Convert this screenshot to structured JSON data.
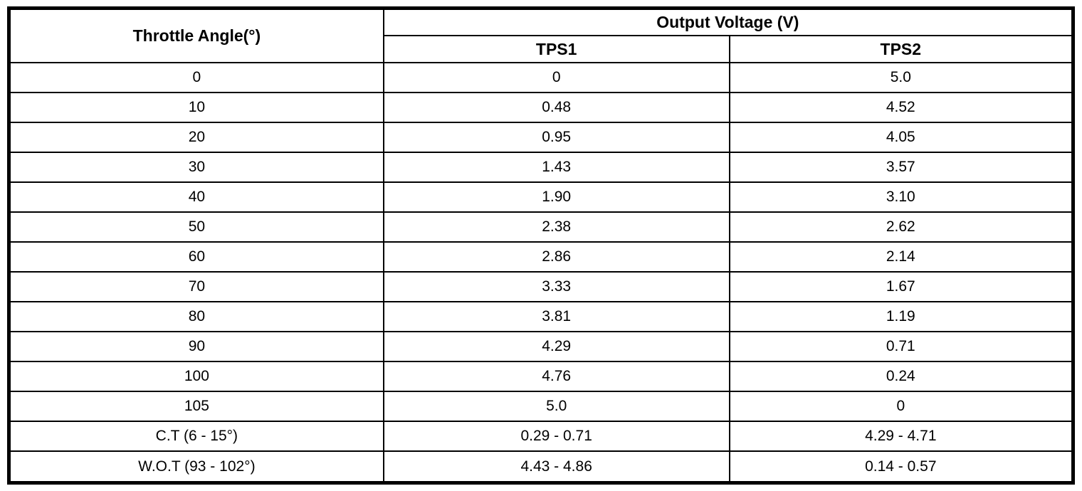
{
  "table": {
    "header": {
      "angle_col": "Throttle Angle(°)",
      "voltage_group": "Output Voltage (V)",
      "sub_columns": [
        "TPS1",
        "TPS2"
      ]
    },
    "rows": [
      {
        "angle": "0",
        "tps1": "0",
        "tps2": "5.0"
      },
      {
        "angle": "10",
        "tps1": "0.48",
        "tps2": "4.52"
      },
      {
        "angle": "20",
        "tps1": "0.95",
        "tps2": "4.05"
      },
      {
        "angle": "30",
        "tps1": "1.43",
        "tps2": "3.57"
      },
      {
        "angle": "40",
        "tps1": "1.90",
        "tps2": "3.10"
      },
      {
        "angle": "50",
        "tps1": "2.38",
        "tps2": "2.62"
      },
      {
        "angle": "60",
        "tps1": "2.86",
        "tps2": "2.14"
      },
      {
        "angle": "70",
        "tps1": "3.33",
        "tps2": "1.67"
      },
      {
        "angle": "80",
        "tps1": "3.81",
        "tps2": "1.19"
      },
      {
        "angle": "90",
        "tps1": "4.29",
        "tps2": "0.71"
      },
      {
        "angle": "100",
        "tps1": "4.76",
        "tps2": "0.24"
      },
      {
        "angle": "105",
        "tps1": "5.0",
        "tps2": "0"
      },
      {
        "angle": "C.T (6 - 15°)",
        "tps1": "0.29 - 0.71",
        "tps2": "4.29 - 4.71"
      },
      {
        "angle": "W.O.T (93 - 102°)",
        "tps1": "4.43 - 4.86",
        "tps2": "0.14 - 0.57"
      }
    ]
  },
  "chart_data": {
    "type": "table",
    "title": "Output Voltage (V)",
    "columns": [
      "Throttle Angle(°)",
      "TPS1",
      "TPS2"
    ],
    "rows": [
      [
        "0",
        "0",
        "5.0"
      ],
      [
        "10",
        "0.48",
        "4.52"
      ],
      [
        "20",
        "0.95",
        "4.05"
      ],
      [
        "30",
        "1.43",
        "3.57"
      ],
      [
        "40",
        "1.90",
        "3.10"
      ],
      [
        "50",
        "2.38",
        "2.62"
      ],
      [
        "60",
        "2.86",
        "2.14"
      ],
      [
        "70",
        "3.33",
        "1.67"
      ],
      [
        "80",
        "3.81",
        "1.19"
      ],
      [
        "90",
        "4.29",
        "0.71"
      ],
      [
        "100",
        "4.76",
        "0.24"
      ],
      [
        "105",
        "5.0",
        "0"
      ],
      [
        "C.T (6 - 15°)",
        "0.29 - 0.71",
        "4.29 - 4.71"
      ],
      [
        "W.O.T (93 - 102°)",
        "4.43 - 4.86",
        "0.14 - 0.57"
      ]
    ]
  }
}
